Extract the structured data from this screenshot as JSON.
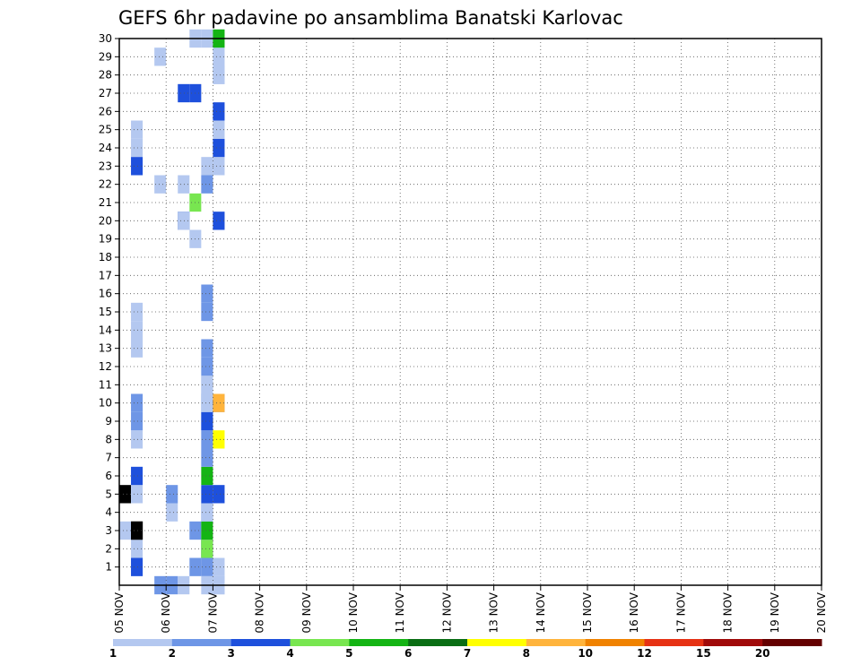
{
  "chart_data": {
    "type": "heatmap",
    "title": "GEFS 6hr padavine po ansamblima Banatski Karlovac",
    "xlabel": "",
    "ylabel": "",
    "x_labels": [
      "05 NOV",
      "06 NOV",
      "07 NOV",
      "08 NOV",
      "09 NOV",
      "10 NOV",
      "11 NOV",
      "12 NOV",
      "13 NOV",
      "14 NOV",
      "15 NOV",
      "16 NOV",
      "17 NOV",
      "18 NOV",
      "19 NOV",
      "20 NOV"
    ],
    "y_labels": [
      "1",
      "2",
      "3",
      "4",
      "5",
      "6",
      "7",
      "8",
      "9",
      "10",
      "11",
      "12",
      "13",
      "14",
      "15",
      "16",
      "17",
      "18",
      "19",
      "20",
      "21",
      "22",
      "23",
      "24",
      "25",
      "26",
      "27",
      "28",
      "29",
      "30"
    ],
    "x_steps_per_day": 4,
    "xlim_steps": [
      0,
      60
    ],
    "ylim_members": [
      0,
      30
    ],
    "grid": true,
    "legend_position": "bottom",
    "color_scale": {
      "labels": [
        "1",
        "2",
        "3",
        "4",
        "5",
        "6",
        "7",
        "8",
        "10",
        "12",
        "15",
        "20"
      ],
      "colors": [
        "#b4c8f0",
        "#6e96e6",
        "#1e50dc",
        "#78e650",
        "#14b414",
        "#0a6e14",
        "#ffff00",
        "#ffb43c",
        "#f08200",
        "#e63214",
        "#a00a0a",
        "#640000"
      ]
    },
    "cells": [
      [
        0,
        30,
        4
      ],
      [
        0,
        0,
        2
      ],
      [
        1,
        0,
        0
      ],
      [
        1,
        0,
        1
      ],
      [
        1,
        28,
        2
      ],
      [
        1,
        29,
        2
      ],
      [
        1,
        2,
        0
      ],
      [
        1,
        0,
        4
      ],
      [
        1,
        2,
        5
      ],
      [
        1,
        0,
        7
      ],
      [
        1,
        1,
        8
      ],
      [
        1,
        1,
        9
      ],
      [
        1,
        0,
        12
      ],
      [
        1,
        0,
        13
      ],
      [
        1,
        0,
        14
      ],
      [
        1,
        0,
        23
      ],
      [
        1,
        2,
        22
      ],
      [
        1,
        0,
        24
      ],
      [
        4,
        1,
        -1
      ],
      [
        3,
        1,
        -1
      ],
      [
        4,
        0,
        3
      ],
      [
        3,
        0,
        21
      ],
      [
        3,
        0,
        28
      ],
      [
        6,
        1,
        0
      ],
      [
        4,
        1,
        4
      ],
      [
        5,
        0,
        -1
      ],
      [
        5,
        1,
        19
      ],
      [
        6,
        3,
        20
      ],
      [
        5,
        1,
        19
      ],
      [
        5,
        0,
        19
      ],
      [
        6,
        2,
        26
      ],
      [
        6,
        1,
        2
      ],
      [
        6,
        0,
        29
      ],
      [
        5,
        2,
        26
      ],
      [
        5,
        0,
        21
      ],
      [
        7,
        0,
        -1
      ],
      [
        7,
        4,
        2
      ],
      [
        7,
        5,
        1
      ],
      [
        7,
        2,
        4
      ],
      [
        7,
        0,
        8
      ],
      [
        7,
        1,
        1
      ],
      [
        7,
        1,
        9
      ],
      [
        7,
        1,
        3
      ],
      [
        7,
        3,
        1
      ],
      [
        7,
        1,
        0
      ],
      [
        7,
        1,
        21
      ],
      [
        7,
        4,
        5
      ],
      [
        7,
        0,
        3
      ],
      [
        7,
        0,
        10
      ],
      [
        7,
        0,
        22
      ],
      [
        6,
        0,
        18
      ],
      [
        7,
        0,
        29
      ],
      [
        7,
        1,
        6
      ],
      [
        7,
        1,
        7
      ],
      [
        7,
        2,
        8
      ],
      [
        7,
        0,
        9
      ],
      [
        7,
        1,
        14
      ],
      [
        7,
        1,
        15
      ],
      [
        7,
        0,
        10
      ],
      [
        7,
        1,
        12
      ],
      [
        7,
        1,
        11
      ],
      [
        8,
        0,
        0
      ],
      [
        8,
        0,
        -1
      ],
      [
        8,
        0,
        29
      ],
      [
        8,
        0,
        27
      ],
      [
        8,
        0,
        22
      ],
      [
        8,
        2,
        23
      ],
      [
        8,
        0,
        28
      ],
      [
        8,
        0,
        27
      ],
      [
        8,
        2,
        25
      ],
      [
        8,
        2,
        4
      ],
      [
        8,
        6,
        7
      ],
      [
        8,
        1,
        9
      ],
      [
        8,
        2,
        19
      ],
      [
        8,
        7,
        9
      ],
      [
        8,
        4,
        29
      ],
      [
        8,
        0,
        24
      ],
      [
        8,
        0,
        -1
      ]
    ]
  }
}
